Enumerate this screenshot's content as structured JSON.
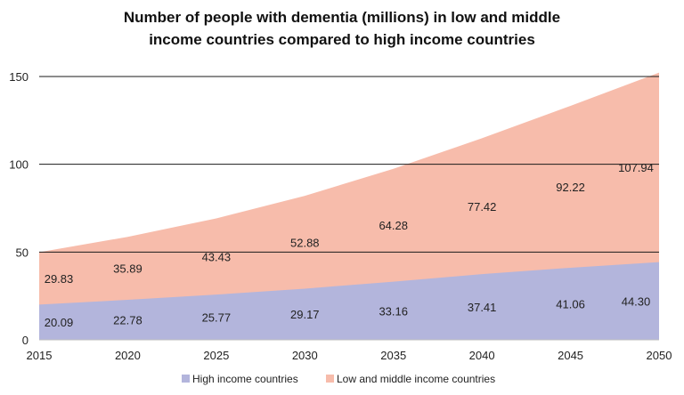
{
  "chart_data": {
    "type": "area",
    "stacked": true,
    "title_lines": [
      "Number of people with dementia (millions) in low and middle",
      "income countries compared to high income countries"
    ],
    "xlabel": "",
    "ylabel": "",
    "x": [
      "2015",
      "2020",
      "2025",
      "2030",
      "2035",
      "2040",
      "2045",
      "2050"
    ],
    "ylim": [
      0,
      150
    ],
    "yticks": [
      "0",
      "50",
      "100",
      "150"
    ],
    "grid": true,
    "legend_position": "bottom",
    "series": [
      {
        "name": "High income countries",
        "values": [
          20.09,
          22.78,
          25.77,
          29.17,
          33.16,
          37.41,
          41.06,
          44.3
        ],
        "labels": [
          "20.09",
          "22.78",
          "25.77",
          "29.17",
          "33.16",
          "37.41",
          "41.06",
          "44.30"
        ],
        "color": "#b3b5dc"
      },
      {
        "name": "Low and middle income countries",
        "values": [
          29.83,
          35.89,
          43.43,
          52.88,
          64.28,
          77.42,
          92.22,
          107.94
        ],
        "labels": [
          "29.83",
          "35.89",
          "43.43",
          "52.88",
          "64.28",
          "77.42",
          "92.22",
          "107.94"
        ],
        "color": "#f7bcab"
      }
    ]
  }
}
